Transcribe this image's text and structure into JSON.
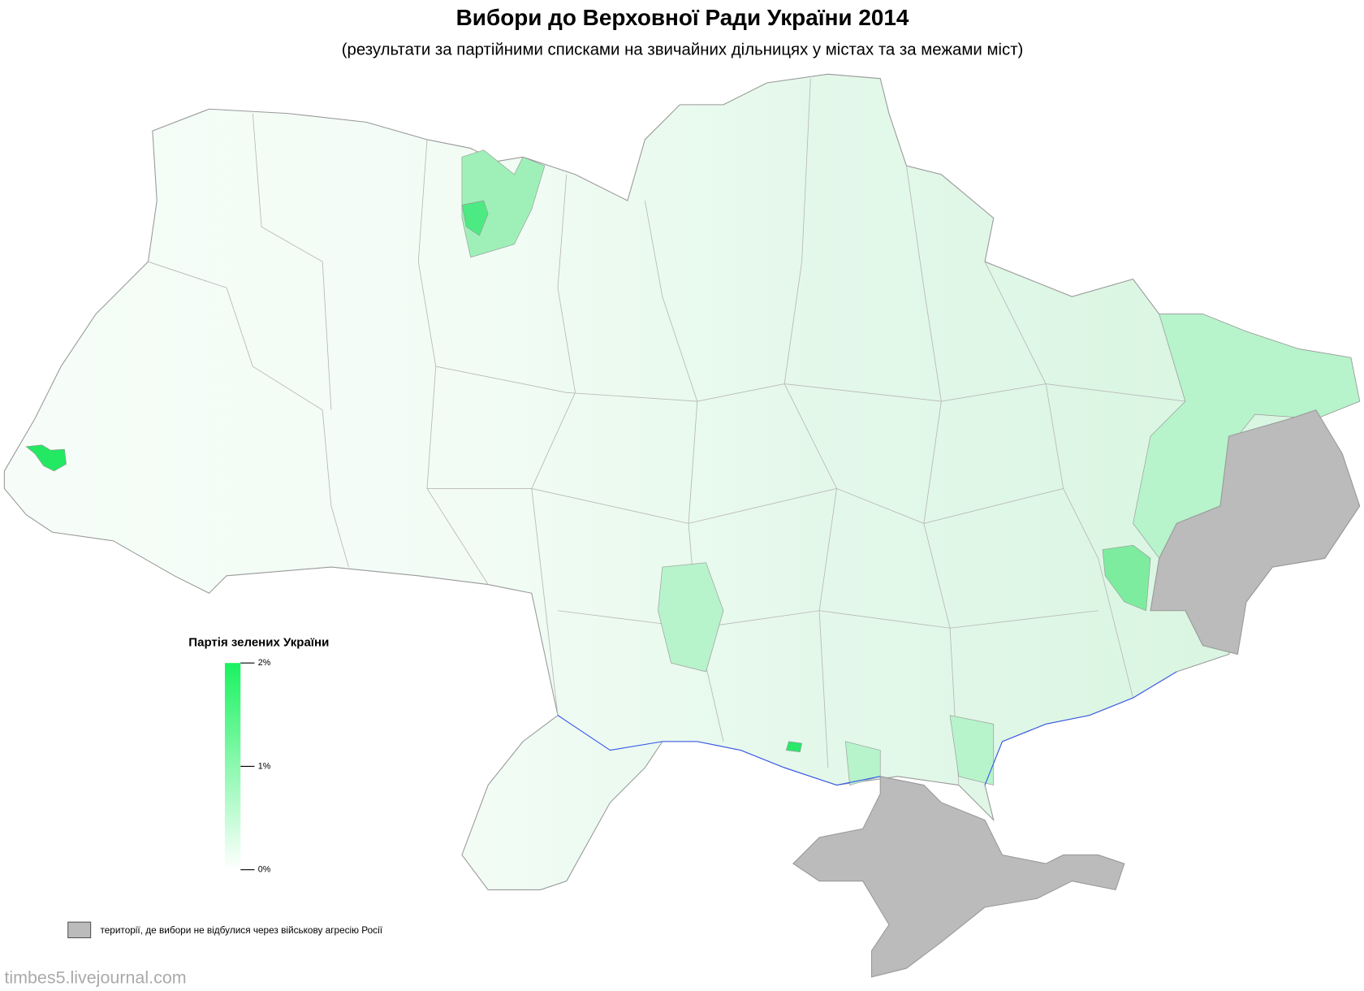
{
  "header": {
    "title": "Вибори до Верховної Ради України 2014",
    "subtitle": "(результати за партійними списками на звичайних дільницях у містах та за межами міст)"
  },
  "legend": {
    "title": "Партія зелених України",
    "scale": {
      "range": [
        0,
        2
      ],
      "colors": [
        "#ffffff",
        "#19f25f"
      ],
      "ticks": [
        {
          "value": 0,
          "label": "0%"
        },
        {
          "value": 1,
          "label": "1%"
        },
        {
          "value": 2,
          "label": "2%"
        }
      ]
    },
    "no_data": {
      "color": "#bbbbbb",
      "label": "території, де вибори не відбулися через військову агресію Росії"
    }
  },
  "footer": {
    "credit": "timbes5.livejournal.com"
  }
}
